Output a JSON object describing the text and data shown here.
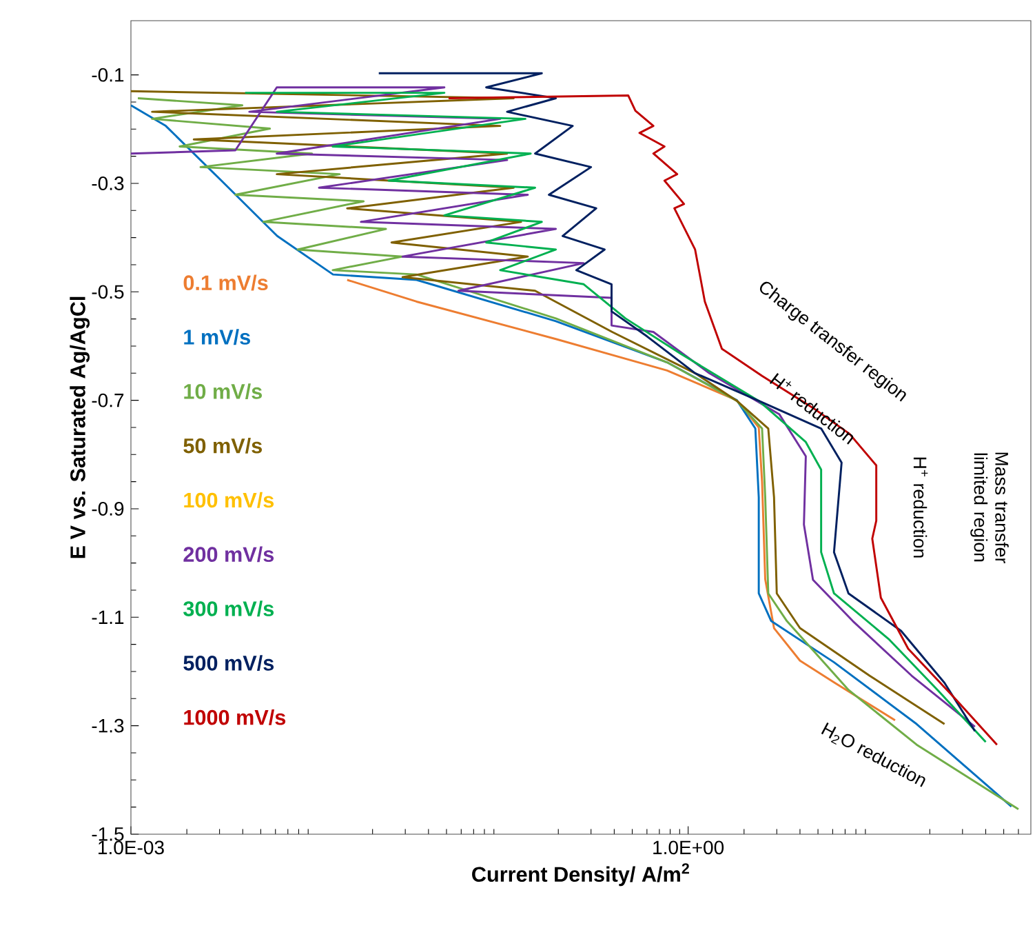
{
  "chart_data": {
    "type": "line",
    "xlabel": "Current Density/ A/m$^{2}$",
    "ylabel": "E  V vs. Saturated  Ag/AgCl",
    "log": "x",
    "xlim": [
      0.001,
      70
    ],
    "ylim": [
      -1.5,
      0
    ],
    "xticks": [
      {
        "value": 0.001,
        "label": "1.0E-03"
      },
      {
        "value": 1,
        "label": "1.0E+00"
      }
    ],
    "yticks": [
      -1.5,
      -1.3,
      -1.1,
      -0.9,
      -0.7,
      -0.5,
      -0.3,
      -0.1
    ],
    "annotations": [
      "Charge transfer region",
      "H$^{+}$ reduction",
      "Mass transfer limited region",
      "H$^{+}$ reduction",
      "H$_{2}$O reduction"
    ],
    "series": [
      {
        "name": "0.1 mV/s",
        "color": "#ed7d31",
        "x": [
          0.0146,
          0.0345,
          0.194,
          0.77,
          1.83,
          2.4,
          2.5,
          2.6,
          2.9,
          4.0,
          6.1,
          13
        ],
        "values": [
          -0.478,
          -0.518,
          -0.587,
          -0.645,
          -0.7,
          -0.75,
          -0.85,
          -1.03,
          -1.12,
          -1.18,
          -1.22,
          -1.29
        ]
      },
      {
        "name": "1 mV/s",
        "color": "#0070c0",
        "x": [
          0.001,
          0.00154,
          0.00307,
          0.00613,
          0.01225,
          0.0345,
          0.194,
          0.77,
          1.83,
          2.3,
          2.4,
          2.4,
          2.8,
          6.1,
          17,
          55
        ],
        "values": [
          -0.156,
          -0.194,
          -0.295,
          -0.397,
          -0.468,
          -0.478,
          -0.554,
          -0.63,
          -0.7,
          -0.752,
          -0.879,
          -1.056,
          -1.107,
          -1.183,
          -1.297,
          -1.449
        ]
      },
      {
        "name": "10 mV/s",
        "color": "#70ad47",
        "x": [
          0.00109,
          0.00398,
          0.0013,
          0.0056,
          0.00183,
          0.00944,
          0.00237,
          0.0133,
          0.00365,
          0.0179,
          0.00516,
          0.0236,
          0.0079,
          0.029,
          0.0122,
          0.0345,
          0.194,
          0.77,
          1.83,
          2.5,
          2.6,
          2.7,
          3.4,
          7.3,
          17,
          60
        ],
        "values": [
          -0.143,
          -0.156,
          -0.181,
          -0.199,
          -0.232,
          -0.245,
          -0.27,
          -0.283,
          -0.321,
          -0.333,
          -0.371,
          -0.384,
          -0.422,
          -0.435,
          -0.46,
          -0.468,
          -0.549,
          -0.63,
          -0.701,
          -0.752,
          -0.879,
          -1.056,
          -1.107,
          -1.234,
          -1.335,
          -1.454
        ]
      },
      {
        "name": "50 mV/s",
        "color": "#7f6000",
        "x": [
          0.001,
          0.115,
          0.0013,
          0.0973,
          0.00218,
          0.106,
          0.0061,
          0.115,
          0.0146,
          0.126,
          0.0253,
          0.137,
          0.029,
          0.15,
          0.39,
          1.09,
          1.83,
          2.7,
          2.9,
          3.0,
          4.0,
          9.5,
          24
        ],
        "values": [
          -0.13,
          -0.143,
          -0.168,
          -0.194,
          -0.219,
          -0.245,
          -0.283,
          -0.308,
          -0.346,
          -0.371,
          -0.409,
          -0.435,
          -0.473,
          -0.498,
          -0.574,
          -0.65,
          -0.701,
          -0.752,
          -0.879,
          -1.056,
          -1.12,
          -1.208,
          -1.297
        ]
      },
      {
        "name": "100 mV/s",
        "color": "#ffc000"
      },
      {
        "name": "200 mV/s",
        "color": "#7030a0",
        "x": [
          0.001,
          0.00365,
          0.0061,
          0.0487,
          0.00434,
          0.0973,
          0.0061,
          0.106,
          0.0103,
          0.137,
          0.0173,
          0.194,
          0.029,
          0.274,
          0.058,
          0.387,
          0.387,
          0.65,
          1.3,
          3.1,
          4.3,
          4.2,
          4.7,
          7.7,
          16,
          35
        ],
        "values": [
          -0.245,
          -0.239,
          -0.123,
          -0.123,
          -0.168,
          -0.181,
          -0.245,
          -0.257,
          -0.308,
          -0.321,
          -0.371,
          -0.384,
          -0.435,
          -0.447,
          -0.498,
          -0.511,
          -0.562,
          -0.574,
          -0.65,
          -0.726,
          -0.803,
          -0.929,
          -1.031,
          -1.107,
          -1.208,
          -1.302
        ]
      },
      {
        "name": "300 mV/s",
        "color": "#00b050",
        "x": [
          0.00412,
          0.0487,
          0.0061,
          0.133,
          0.0122,
          0.142,
          0.0244,
          0.15,
          0.0487,
          0.163,
          0.0818,
          0.194,
          0.0973,
          0.274,
          0.46,
          0.92,
          2.4,
          4.3,
          5.2,
          5.2,
          6.1,
          12,
          22,
          40
        ],
        "values": [
          -0.133,
          -0.133,
          -0.168,
          -0.181,
          -0.232,
          -0.245,
          -0.295,
          -0.308,
          -0.359,
          -0.371,
          -0.409,
          -0.422,
          -0.46,
          -0.486,
          -0.549,
          -0.615,
          -0.701,
          -0.777,
          -0.828,
          -0.98,
          -1.056,
          -1.14,
          -1.234,
          -1.33
        ]
      },
      {
        "name": "500 mV/s",
        "color": "#002060",
        "x": [
          0.0216,
          0.163,
          0.0818,
          0.194,
          0.106,
          0.239,
          0.15,
          0.3,
          0.178,
          0.32,
          0.211,
          0.355,
          0.25,
          0.387,
          0.387,
          0.6,
          1.09,
          2.4,
          5.2,
          6.7,
          6.1,
          7.3,
          14,
          24,
          35
        ],
        "values": [
          -0.097,
          -0.097,
          -0.123,
          -0.143,
          -0.168,
          -0.194,
          -0.245,
          -0.27,
          -0.321,
          -0.346,
          -0.397,
          -0.422,
          -0.46,
          -0.486,
          -0.536,
          -0.582,
          -0.65,
          -0.701,
          -0.752,
          -0.815,
          -0.98,
          -1.056,
          -1.125,
          -1.221,
          -1.31
        ]
      },
      {
        "name": "1000 mV/s",
        "color": "#c00000",
        "x": [
          0.0513,
          0.476,
          0.52,
          0.65,
          0.547,
          0.746,
          0.65,
          0.873,
          0.746,
          0.95,
          0.843,
          1.09,
          1.23,
          1.52,
          2.5,
          4.7,
          7.4,
          10.3,
          10.3,
          9.8,
          10.9,
          15.3,
          26.7,
          46
        ],
        "values": [
          -0.143,
          -0.138,
          -0.166,
          -0.194,
          -0.207,
          -0.232,
          -0.245,
          -0.283,
          -0.295,
          -0.338,
          -0.346,
          -0.422,
          -0.518,
          -0.605,
          -0.655,
          -0.714,
          -0.762,
          -0.82,
          -0.922,
          -0.955,
          -1.064,
          -1.158,
          -1.246,
          -1.335
        ]
      }
    ]
  }
}
